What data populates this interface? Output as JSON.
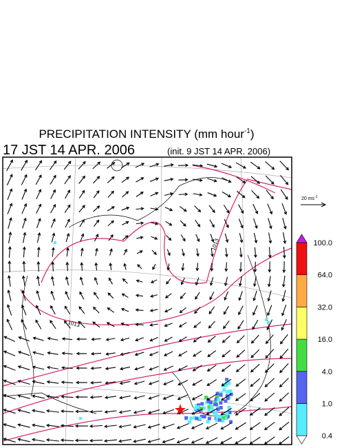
{
  "header": {
    "title": "PRECIPITATION INTENSITY (mm hour",
    "title_superscript": "-1",
    "title_close": ")",
    "valid_time": "17 JST 14 APR. 2006",
    "init_time": "(init. 9 JST 14 APR. 2006)"
  },
  "wind_scale": {
    "label": "20 ms",
    "superscript": "-1"
  },
  "colorbar": {
    "levels": [
      "0.4",
      "1.0",
      "4.0",
      "16.0",
      "32.0",
      "64.0",
      "100.0"
    ],
    "colors": [
      "#55eeff",
      "#5566ee",
      "#44dd44",
      "#ffff66",
      "#ffaa44",
      "#ee1111"
    ],
    "over_color": "#bb22ee",
    "under_color": "#ffffff"
  },
  "isobars": {
    "labels": [
      "1013",
      "1013"
    ]
  }
}
